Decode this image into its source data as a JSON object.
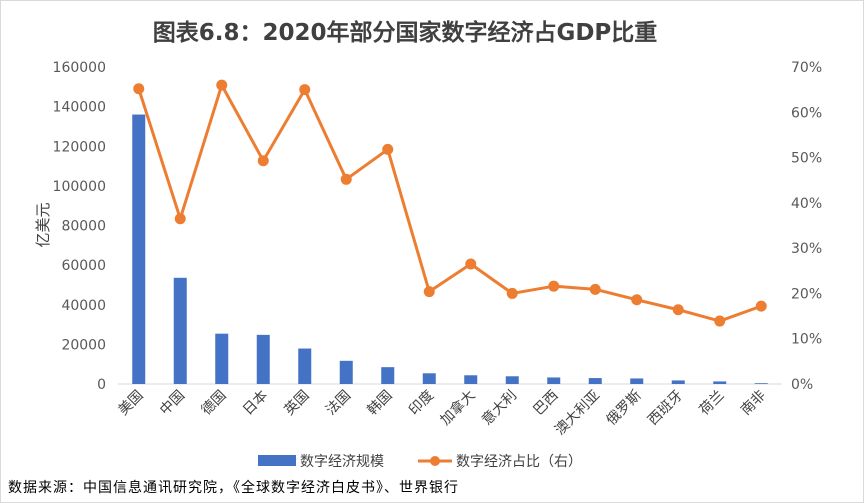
{
  "chart_data": {
    "type": "bar",
    "title": "图表6.8：2020年部分国家数字经济占GDP比重",
    "ylabel": "亿美元",
    "ylim": [
      0,
      160000
    ],
    "y_ticks": [
      "0",
      "20000",
      "40000",
      "60000",
      "80000",
      "100000",
      "120000",
      "140000",
      "160000"
    ],
    "y2lim": [
      0,
      70
    ],
    "y2_ticks": [
      "0%",
      "10%",
      "20%",
      "30%",
      "40%",
      "50%",
      "60%",
      "70%"
    ],
    "categories": [
      "美国",
      "中国",
      "德国",
      "日本",
      "英国",
      "法国",
      "韩国",
      "印度",
      "加拿大",
      "意大利",
      "巴西",
      "澳大利亚",
      "俄罗斯",
      "西班牙",
      "荷兰",
      "南非"
    ],
    "series": [
      {
        "name": "数字经济规模",
        "type": "bar",
        "axis": "left",
        "color": "#4472c4",
        "values": [
          136000,
          53600,
          25400,
          24800,
          17900,
          11700,
          8500,
          5400,
          4400,
          3900,
          3300,
          3000,
          2800,
          1800,
          1300,
          400
        ]
      },
      {
        "name": "数字经济占比（右）",
        "type": "line",
        "axis": "right",
        "color": "#ed7d31",
        "values": [
          65.2,
          36.5,
          66.0,
          49.3,
          65.0,
          45.2,
          51.8,
          20.4,
          26.5,
          20.0,
          21.6,
          20.9,
          18.6,
          16.4,
          13.9,
          17.2
        ]
      }
    ],
    "grid": false,
    "legend": "bottom"
  },
  "footer": {
    "source": "数据来源：中国信息通讯研究院，《全球数字经济白皮书》、世界银行"
  },
  "colors": {
    "bar": "#4472c4",
    "line": "#ed7d31",
    "axis_text": "#595959",
    "title": "#404040"
  }
}
